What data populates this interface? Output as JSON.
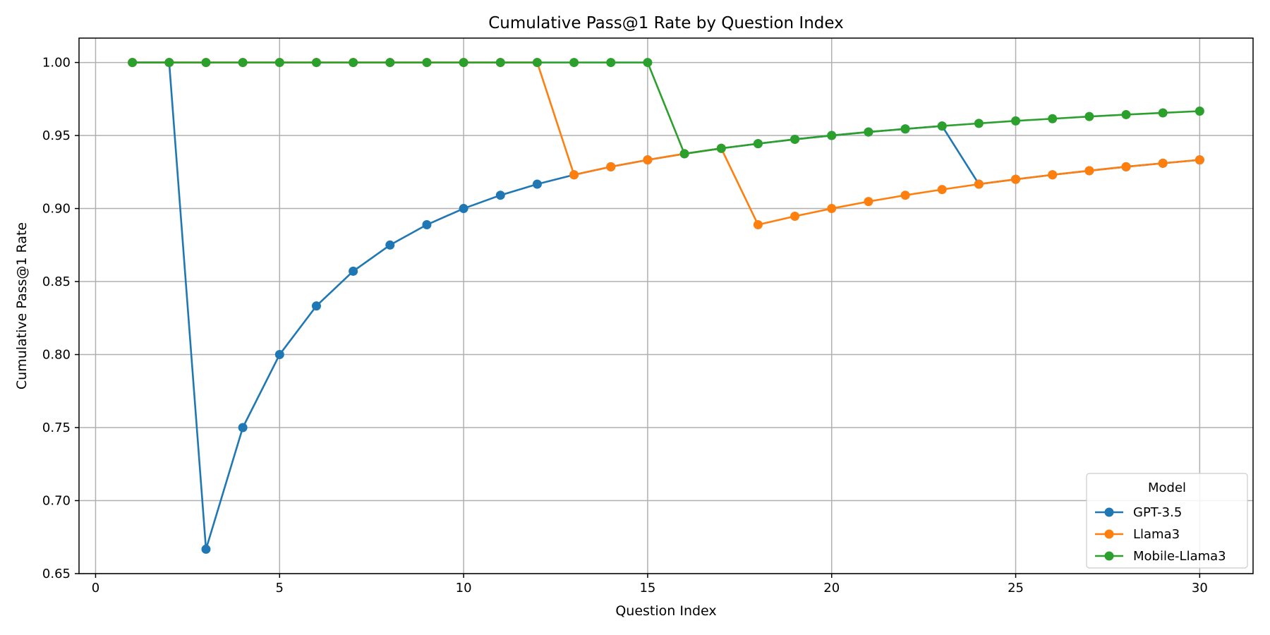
{
  "chart_data": {
    "type": "line",
    "title": "Cumulative Pass@1 Rate by Question Index",
    "xlabel": "Question Index",
    "ylabel": "Cumulative Pass@1 Rate",
    "xlim": [
      -0.45,
      31.45
    ],
    "ylim": [
      0.65,
      1.0167
    ],
    "xticks": [
      0,
      5,
      10,
      15,
      20,
      25,
      30
    ],
    "xtick_labels": [
      "0",
      "5",
      "10",
      "15",
      "20",
      "25",
      "30"
    ],
    "yticks": [
      0.65,
      0.7,
      0.75,
      0.8,
      0.85,
      0.9,
      0.95,
      1.0
    ],
    "ytick_labels": [
      "0.65",
      "0.70",
      "0.75",
      "0.80",
      "0.85",
      "0.90",
      "0.95",
      "1.00"
    ],
    "grid": true,
    "legend": {
      "title": "Model",
      "placement": "lower-right"
    },
    "x": [
      1,
      2,
      3,
      4,
      5,
      6,
      7,
      8,
      9,
      10,
      11,
      12,
      13,
      14,
      15,
      16,
      17,
      18,
      19,
      20,
      21,
      22,
      23,
      24,
      25,
      26,
      27,
      28,
      29,
      30
    ],
    "series": [
      {
        "name": "GPT-3.5",
        "color": "#1f77b4",
        "values": [
          1.0,
          1.0,
          0.6667,
          0.75,
          0.8,
          0.8333,
          0.8571,
          0.875,
          0.8889,
          0.9,
          0.9091,
          0.9167,
          0.9231,
          0.9286,
          0.9333,
          0.9375,
          0.9412,
          0.9444,
          0.9474,
          0.95,
          0.9524,
          0.9545,
          0.9565,
          0.9167,
          0.92,
          0.9231,
          0.9259,
          0.9286,
          0.931,
          0.9333
        ]
      },
      {
        "name": "Llama3",
        "color": "#ff7f0e",
        "values": [
          1.0,
          1.0,
          1.0,
          1.0,
          1.0,
          1.0,
          1.0,
          1.0,
          1.0,
          1.0,
          1.0,
          1.0,
          0.9231,
          0.9286,
          0.9333,
          0.9375,
          0.9412,
          0.8889,
          0.8947,
          0.9,
          0.9048,
          0.9091,
          0.913,
          0.9167,
          0.92,
          0.9231,
          0.9259,
          0.9286,
          0.931,
          0.9333
        ]
      },
      {
        "name": "Mobile-Llama3",
        "color": "#2ca02c",
        "values": [
          1.0,
          1.0,
          1.0,
          1.0,
          1.0,
          1.0,
          1.0,
          1.0,
          1.0,
          1.0,
          1.0,
          1.0,
          1.0,
          1.0,
          1.0,
          0.9375,
          0.9412,
          0.9444,
          0.9474,
          0.95,
          0.9524,
          0.9545,
          0.9565,
          0.9583,
          0.96,
          0.9615,
          0.963,
          0.9643,
          0.9655,
          0.9667
        ]
      }
    ]
  }
}
